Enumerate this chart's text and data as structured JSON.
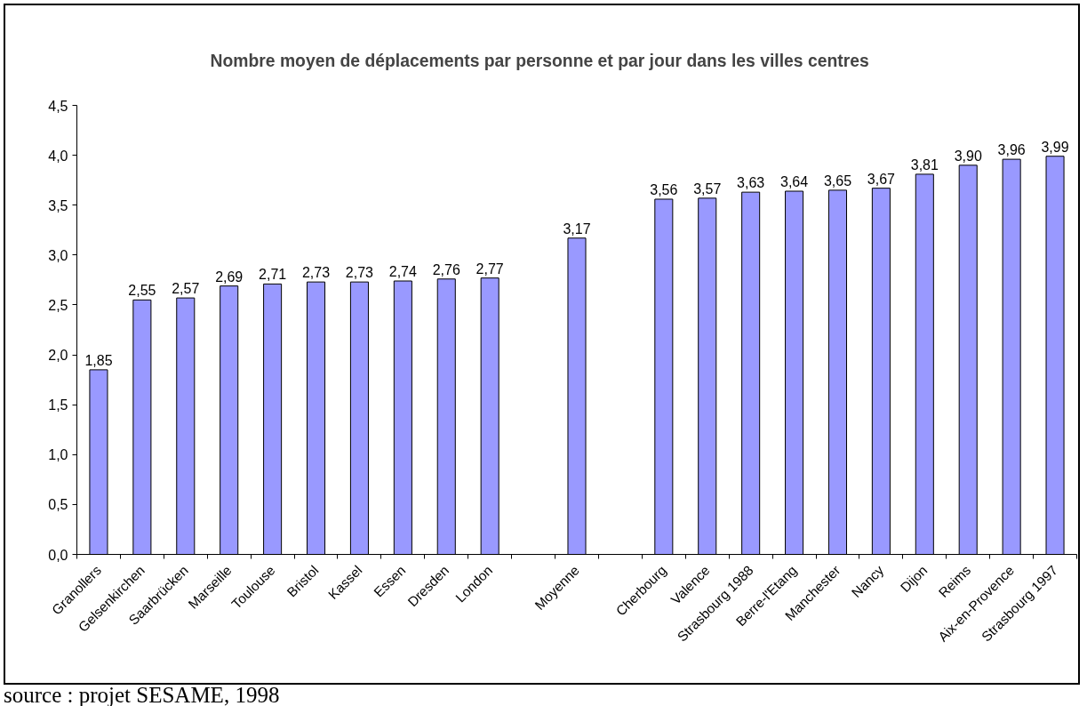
{
  "chart_data": {
    "type": "bar",
    "title": "Nombre moyen de déplacements par personne et par jour dans les villes centres",
    "categories": [
      "Granollers",
      "Gelsenkirchen",
      "Saarbrücken",
      "Marseille",
      "Toulouse",
      "Bristol",
      "Kassel",
      "Essen",
      "Dresden",
      "London",
      null,
      "Moyenne",
      null,
      "Cherbourg",
      "Valence",
      "Strasbourg 1988",
      "Berre-l'Etang",
      "Manchester",
      "Nancy",
      "Dijon",
      "Reims",
      "Aix-en-Provence",
      "Strasbourg 1997"
    ],
    "values": [
      1.85,
      2.55,
      2.57,
      2.69,
      2.71,
      2.73,
      2.73,
      2.74,
      2.76,
      2.77,
      null,
      3.17,
      null,
      3.56,
      3.57,
      3.63,
      3.64,
      3.65,
      3.67,
      3.81,
      3.9,
      3.96,
      3.99
    ],
    "value_labels": [
      "1,85",
      "2,55",
      "2,57",
      "2,69",
      "2,71",
      "2,73",
      "2,73",
      "2,74",
      "2,76",
      "2,77",
      null,
      "3,17",
      null,
      "3,56",
      "3,57",
      "3,63",
      "3,64",
      "3,65",
      "3,67",
      "3,81",
      "3,90",
      "3,96",
      "3,99"
    ],
    "color": "#9999ff",
    "ylim": [
      0,
      4.5
    ],
    "yticks": [
      {
        "value": 0,
        "label": "0,0"
      },
      {
        "value": 0.5,
        "label": "0,5"
      },
      {
        "value": 1,
        "label": "1,0"
      },
      {
        "value": 1.5,
        "label": "1,5"
      },
      {
        "value": 2,
        "label": "2,0"
      },
      {
        "value": 2.5,
        "label": "2,5"
      },
      {
        "value": 3,
        "label": "3,0"
      },
      {
        "value": 3.5,
        "label": "3,5"
      },
      {
        "value": 4,
        "label": "4,0"
      },
      {
        "value": 4.5,
        "label": "4,5"
      }
    ],
    "grid": false,
    "annotations": [
      "source : projet SESAME, 1998"
    ]
  }
}
